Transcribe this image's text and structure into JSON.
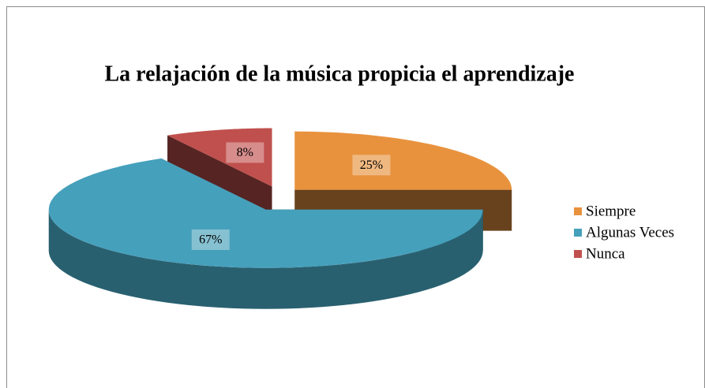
{
  "chart_data": {
    "type": "pie",
    "title": "La relajación de la música propicia el aprendizaje",
    "categories": [
      "Siempre",
      "Algunas Veces",
      "Nunca"
    ],
    "values": [
      25,
      67,
      8
    ],
    "value_labels": [
      "25%",
      "67%",
      "8%"
    ],
    "colors": [
      "#e8923e",
      "#45a0bb",
      "#c0504d"
    ],
    "legend": "right"
  }
}
